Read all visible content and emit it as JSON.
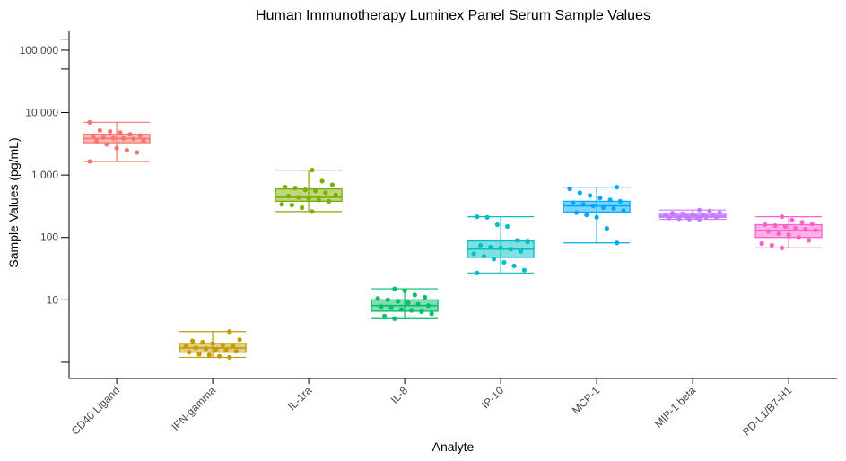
{
  "chart_data": {
    "type": "box",
    "title": "Human Immunotherapy Luminex Panel Serum Sample Values",
    "xlabel": "Analyte",
    "ylabel": "Sample Values (pg/mL)",
    "yscale": "log10",
    "ylim": [
      0.55,
      200000
    ],
    "y_ticks": [
      {
        "value": 10,
        "label": "10"
      },
      {
        "value": 100,
        "label": "100"
      },
      {
        "value": 1000,
        "label": "1,000"
      },
      {
        "value": 10000,
        "label": "10,000"
      },
      {
        "value": 100000,
        "label": "100,000"
      }
    ],
    "y_minor_ticks": [
      1,
      50000,
      150000
    ],
    "categories": [
      "CD40 Ligand",
      "IFN-gamma",
      "IL-1ra",
      "IL-8",
      "IP-10",
      "MCP-1",
      "MIP-1 beta",
      "PD-L1/B7-H1"
    ],
    "series": [
      {
        "name": "CD40 Ligand",
        "color": "#f8766d",
        "box": {
          "min": 1650,
          "q1": 3300,
          "median": 3850,
          "q3": 4500,
          "max": 7000
        },
        "points": [
          7000,
          5200,
          5000,
          4800,
          4500,
          4300,
          4100,
          4000,
          3900,
          3850,
          3800,
          3600,
          3500,
          3100,
          2700,
          2500,
          2300,
          1650
        ]
      },
      {
        "name": "IFN-gamma",
        "color": "#c49a00",
        "box": {
          "min": 1.2,
          "q1": 1.45,
          "median": 1.7,
          "q3": 2.0,
          "max": 3.1
        },
        "points": [
          3.1,
          2.3,
          2.2,
          2.1,
          2.0,
          1.9,
          1.85,
          1.8,
          1.7,
          1.65,
          1.6,
          1.55,
          1.5,
          1.45,
          1.35,
          1.3,
          1.25,
          1.2
        ]
      },
      {
        "name": "IL-1ra",
        "color": "#7cae00",
        "box": {
          "min": 260,
          "q1": 380,
          "median": 440,
          "q3": 600,
          "max": 1200
        },
        "points": [
          1200,
          800,
          700,
          640,
          620,
          580,
          560,
          520,
          480,
          460,
          440,
          420,
          400,
          380,
          340,
          330,
          300,
          260
        ]
      },
      {
        "name": "IL-8",
        "color": "#00be67",
        "box": {
          "min": 5.0,
          "q1": 6.6,
          "median": 8.1,
          "q3": 10.0,
          "max": 15.0
        },
        "points": [
          15.0,
          14.0,
          12.0,
          11.0,
          10.5,
          10.0,
          9.5,
          9.0,
          8.5,
          8.1,
          7.8,
          7.5,
          7.0,
          6.8,
          6.5,
          6.0,
          5.5,
          5.0
        ]
      },
      {
        "name": "IP-10",
        "color": "#00bfc4",
        "box": {
          "min": 27,
          "q1": 48,
          "median": 65,
          "q3": 88,
          "max": 215
        },
        "points": [
          215,
          210,
          160,
          150,
          90,
          85,
          75,
          70,
          68,
          65,
          60,
          55,
          50,
          45,
          40,
          35,
          30,
          27
        ]
      },
      {
        "name": "MCP-1",
        "color": "#00a9ff",
        "box": {
          "min": 82,
          "q1": 255,
          "median": 320,
          "q3": 380,
          "max": 640
        },
        "points": [
          640,
          600,
          520,
          470,
          430,
          400,
          380,
          360,
          340,
          320,
          300,
          290,
          270,
          250,
          230,
          210,
          140,
          82
        ]
      },
      {
        "name": "MIP-1 beta",
        "color": "#c77cff",
        "box": {
          "min": 195,
          "q1": 210,
          "median": 220,
          "q3": 235,
          "max": 275
        },
        "points": [
          275,
          265,
          250,
          245,
          240,
          235,
          232,
          228,
          225,
          220,
          218,
          215,
          212,
          210,
          205,
          200,
          197,
          195
        ]
      },
      {
        "name": "PD-L1/B7-H1",
        "color": "#ff61cc",
        "box": {
          "min": 68,
          "q1": 100,
          "median": 130,
          "q3": 160,
          "max": 215
        },
        "points": [
          215,
          190,
          175,
          165,
          160,
          155,
          150,
          140,
          135,
          130,
          125,
          115,
          110,
          100,
          90,
          80,
          75,
          68
        ]
      }
    ]
  }
}
